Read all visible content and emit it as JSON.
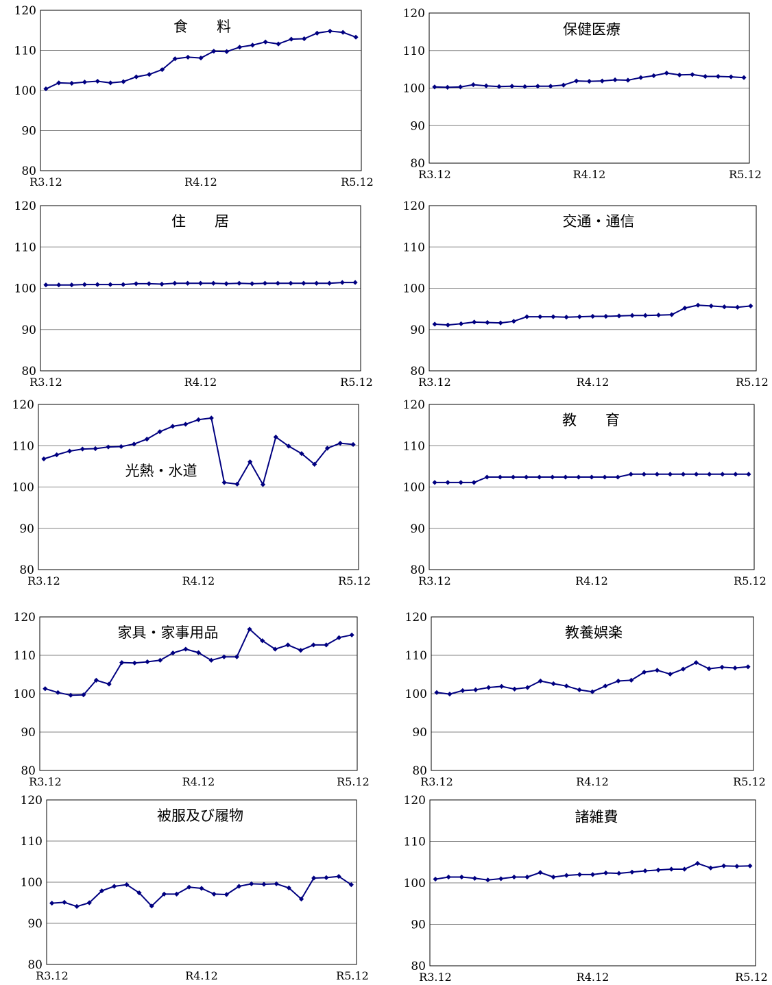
{
  "theme": {
    "line_color": "#000080",
    "grid_color": "#808080",
    "frame_color": "#000000"
  },
  "chart_data": [
    {
      "type": "line",
      "title": "食　　料",
      "ylim": [
        80,
        120
      ],
      "yticks": [
        "120",
        "110",
        "100",
        "90",
        "80"
      ],
      "xticks": [
        "R3.12",
        "R4.12",
        "R5.12"
      ],
      "grid": true,
      "series": [
        {
          "values": [
            100.4,
            101.9,
            101.8,
            102.1,
            102.3,
            101.9,
            102.2,
            103.4,
            104.0,
            105.2,
            107.9,
            108.3,
            108.1,
            109.8,
            109.7,
            110.8,
            111.3,
            112.1,
            111.6,
            112.8,
            112.9,
            114.3,
            114.8,
            114.5,
            113.3
          ]
        }
      ]
    },
    {
      "type": "line",
      "title": "保健医療",
      "ylim": [
        80,
        120
      ],
      "yticks": [
        "120",
        "110",
        "100",
        "90",
        "80"
      ],
      "xticks": [
        "R3.12",
        "R4.12",
        "R5.12"
      ],
      "grid": true,
      "series": [
        {
          "values": [
            100.3,
            100.2,
            100.3,
            100.9,
            100.6,
            100.4,
            100.5,
            100.4,
            100.5,
            100.5,
            100.8,
            101.9,
            101.8,
            101.9,
            102.2,
            102.1,
            102.8,
            103.3,
            104.0,
            103.5,
            103.6,
            103.1,
            103.1,
            103.0,
            102.8
          ]
        }
      ]
    },
    {
      "type": "line",
      "title": "住　　居",
      "ylim": [
        80,
        120
      ],
      "yticks": [
        "120",
        "110",
        "100",
        "90",
        "80"
      ],
      "xticks": [
        "R3.12",
        "R4.12",
        "R5.12"
      ],
      "grid": true,
      "series": [
        {
          "values": [
            100.8,
            100.8,
            100.8,
            100.9,
            100.9,
            100.9,
            100.9,
            101.1,
            101.1,
            101.0,
            101.2,
            101.2,
            101.2,
            101.2,
            101.1,
            101.2,
            101.1,
            101.2,
            101.2,
            101.2,
            101.2,
            101.2,
            101.2,
            101.4,
            101.4
          ]
        }
      ]
    },
    {
      "type": "line",
      "title": "交通・通信",
      "ylim": [
        80,
        120
      ],
      "yticks": [
        "120",
        "110",
        "100",
        "90",
        "80"
      ],
      "xticks": [
        "R3.12",
        "R4.12",
        "R5.12"
      ],
      "grid": true,
      "series": [
        {
          "values": [
            91.3,
            91.1,
            91.4,
            91.8,
            91.7,
            91.6,
            92.0,
            93.1,
            93.1,
            93.1,
            93.0,
            93.1,
            93.2,
            93.2,
            93.3,
            93.4,
            93.4,
            93.5,
            93.6,
            95.2,
            95.9,
            95.7,
            95.5,
            95.4,
            95.7
          ]
        }
      ]
    },
    {
      "type": "line",
      "title": "光熱・水道",
      "ylim": [
        80,
        120
      ],
      "yticks": [
        "120",
        "110",
        "100",
        "90",
        "80"
      ],
      "xticks": [
        "R3.12",
        "R4.12",
        "R5.12"
      ],
      "grid": true,
      "series": [
        {
          "values": [
            106.8,
            107.8,
            108.7,
            109.2,
            109.3,
            109.7,
            109.8,
            110.4,
            111.6,
            113.4,
            114.7,
            115.2,
            116.3,
            116.7,
            101.1,
            100.7,
            106.1,
            100.6,
            112.1,
            109.9,
            108.1,
            105.5,
            109.4,
            110.6,
            110.3
          ]
        }
      ]
    },
    {
      "type": "line",
      "title": "教　　育",
      "ylim": [
        80,
        120
      ],
      "yticks": [
        "120",
        "110",
        "100",
        "90",
        "80"
      ],
      "xticks": [
        "R3.12",
        "R4.12",
        "R5.12"
      ],
      "grid": true,
      "series": [
        {
          "values": [
            101.1,
            101.1,
            101.1,
            101.1,
            102.4,
            102.4,
            102.4,
            102.4,
            102.4,
            102.4,
            102.4,
            102.4,
            102.4,
            102.4,
            102.4,
            103.1,
            103.1,
            103.1,
            103.1,
            103.1,
            103.1,
            103.1,
            103.1,
            103.1,
            103.1
          ]
        }
      ]
    },
    {
      "type": "line",
      "title": "家具・家事用品",
      "ylim": [
        80,
        120
      ],
      "yticks": [
        "120",
        "110",
        "100",
        "90",
        "80"
      ],
      "xticks": [
        "R3.12",
        "R4.12",
        "R5.12"
      ],
      "grid": true,
      "series": [
        {
          "values": [
            101.3,
            100.3,
            99.6,
            99.7,
            103.5,
            102.5,
            108.1,
            108.0,
            108.3,
            108.7,
            110.6,
            111.6,
            110.7,
            108.7,
            109.6,
            109.6,
            116.8,
            113.8,
            111.6,
            112.7,
            111.3,
            112.7,
            112.7,
            114.6,
            115.3
          ]
        }
      ]
    },
    {
      "type": "line",
      "title": "教養娯楽",
      "ylim": [
        80,
        120
      ],
      "yticks": [
        "120",
        "110",
        "100",
        "90",
        "80"
      ],
      "xticks": [
        "R3.12",
        "R4.12",
        "R5.12"
      ],
      "grid": true,
      "series": [
        {
          "values": [
            100.3,
            99.9,
            100.8,
            101.0,
            101.6,
            101.9,
            101.2,
            101.6,
            103.3,
            102.6,
            102.0,
            101.0,
            100.5,
            102.0,
            103.3,
            103.5,
            105.6,
            106.1,
            105.1,
            106.4,
            108.1,
            106.5,
            106.9,
            106.7,
            107.0
          ]
        }
      ]
    },
    {
      "type": "line",
      "title": "被服及び履物",
      "ylim": [
        80,
        120
      ],
      "yticks": [
        "120",
        "110",
        "100",
        "90",
        "80"
      ],
      "xticks": [
        "R3.12",
        "R4.12",
        "R5.12"
      ],
      "grid": true,
      "series": [
        {
          "values": [
            94.9,
            95.1,
            94.1,
            95.0,
            97.9,
            99.0,
            99.4,
            97.4,
            94.2,
            97.1,
            97.1,
            98.8,
            98.5,
            97.1,
            97.0,
            99.0,
            99.6,
            99.5,
            99.6,
            98.6,
            95.9,
            101.0,
            101.1,
            101.4,
            99.4
          ]
        }
      ]
    },
    {
      "type": "line",
      "title": "諸雑費",
      "ylim": [
        80,
        120
      ],
      "yticks": [
        "120",
        "110",
        "100",
        "90",
        "80"
      ],
      "xticks": [
        "R3.12",
        "R4.12",
        "R5.12"
      ],
      "grid": true,
      "series": [
        {
          "values": [
            100.9,
            101.4,
            101.4,
            101.1,
            100.7,
            101.0,
            101.4,
            101.4,
            102.5,
            101.4,
            101.8,
            102.0,
            102.0,
            102.4,
            102.3,
            102.6,
            102.9,
            103.1,
            103.3,
            103.3,
            104.7,
            103.6,
            104.1,
            104.0,
            104.1
          ]
        }
      ]
    }
  ]
}
